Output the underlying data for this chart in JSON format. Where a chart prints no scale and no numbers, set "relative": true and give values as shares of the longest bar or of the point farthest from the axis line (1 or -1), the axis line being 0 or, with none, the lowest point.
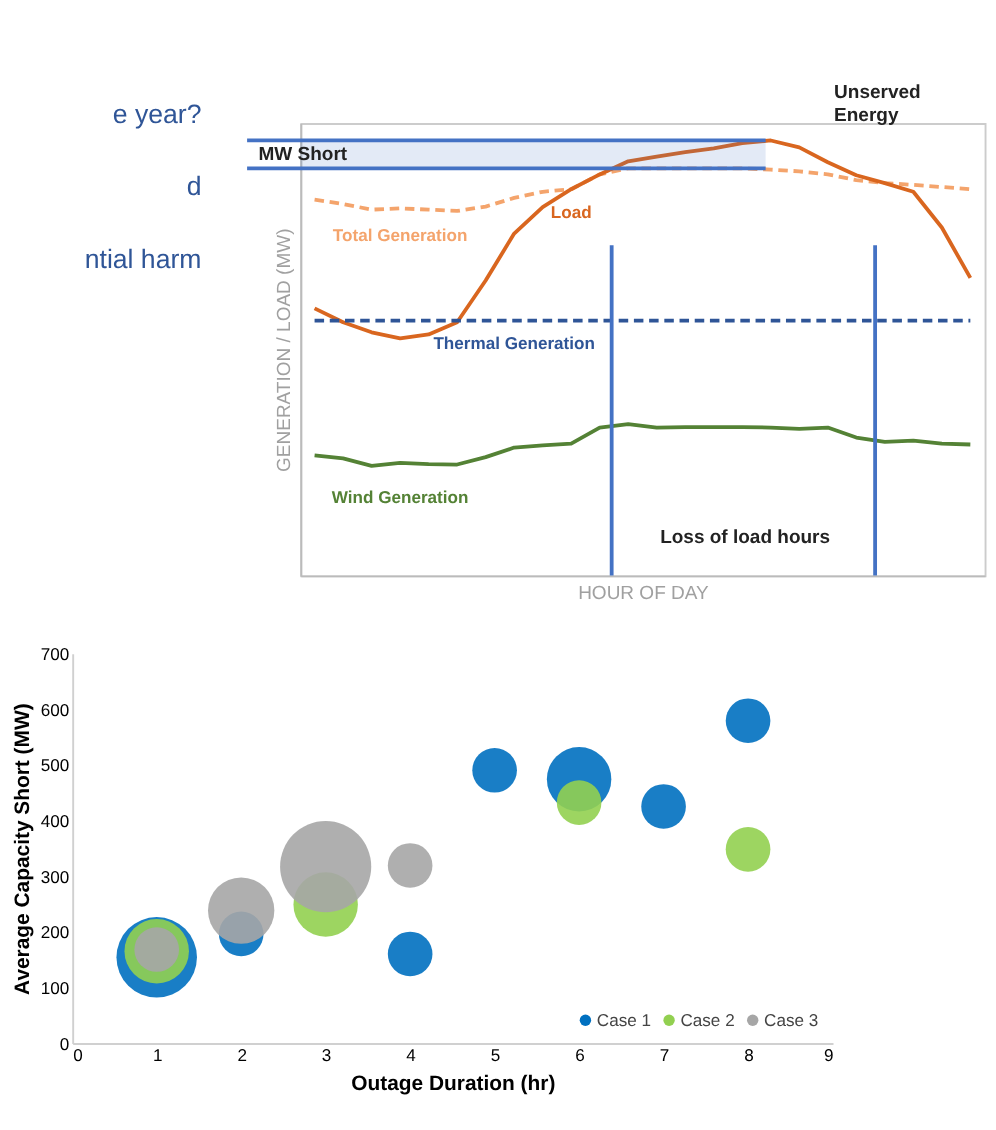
{
  "chart_data": [
    {
      "type": "line",
      "relative": true,
      "xlabel": "HOUR OF DAY",
      "ylabel": "GENERATION / LOAD (MW)",
      "legend": false,
      "grid": false,
      "tick_labels": false,
      "categories": [
        null,
        null,
        null,
        null,
        null,
        null,
        null,
        null,
        null,
        null,
        null,
        null,
        null,
        null,
        null,
        null,
        null,
        null,
        null,
        null,
        null,
        null,
        null,
        null
      ],
      "series": [
        {
          "name": "Total Generation",
          "color": "#f4a46c",
          "line_style": "dashed",
          "values": [
            0.864,
            0.854,
            0.841,
            0.844,
            0.841,
            0.838,
            0.848,
            0.868,
            0.882,
            0.888,
            0.922,
            0.936,
            0.936,
            0.936,
            0.936,
            0.936,
            0.933,
            0.929,
            0.922,
            0.909,
            0.902,
            0.898,
            0.893,
            0.888
          ]
        },
        {
          "name": "Load",
          "color": "#d9661f",
          "line_style": "solid",
          "values": [
            0.614,
            0.582,
            0.559,
            0.545,
            0.554,
            0.582,
            0.678,
            0.786,
            0.847,
            0.888,
            0.922,
            0.952,
            0.963,
            0.973,
            0.982,
            0.994,
            1.0,
            0.984,
            0.95,
            0.92,
            0.902,
            0.882,
            0.8,
            0.684
          ]
        },
        {
          "name": "Thermal Generation",
          "color": "#2f5597",
          "line_style": "dashed",
          "values": [
            0.586,
            0.586,
            0.586,
            0.586,
            0.586,
            0.586,
            0.586,
            0.586,
            0.586,
            0.586,
            0.586,
            0.586,
            0.586,
            0.586,
            0.586,
            0.586,
            0.586,
            0.586,
            0.586,
            0.586,
            0.586,
            0.586,
            0.586,
            0.586
          ]
        },
        {
          "name": "Wind Generation",
          "color": "#548235",
          "line_style": "solid",
          "values": [
            0.276,
            0.269,
            0.252,
            0.259,
            0.256,
            0.255,
            0.272,
            0.294,
            0.299,
            0.303,
            0.34,
            0.348,
            0.34,
            0.341,
            0.341,
            0.341,
            0.34,
            0.337,
            0.34,
            0.317,
            0.307,
            0.31,
            0.303,
            0.301
          ]
        }
      ],
      "bands": [
        {
          "axis": "y",
          "from": 0.936,
          "to": 1.0,
          "label": "MW Short",
          "color": "#4472c4"
        }
      ],
      "annotations": [
        "Unserved Energy",
        "Loss of load hours",
        "e year?",
        "d",
        "ntial harm"
      ]
    },
    {
      "type": "bubble",
      "xlabel": "Outage Duration (hr)",
      "ylabel": "Average Capacity Short (MW)",
      "legend": "bottom right",
      "grid": false,
      "xlim": [
        0,
        9
      ],
      "xticks": [
        0,
        1,
        2,
        3,
        4,
        5,
        6,
        7,
        8,
        9
      ],
      "ylim": [
        0,
        700
      ],
      "yticks": [
        0,
        100,
        200,
        300,
        400,
        500,
        600,
        700
      ],
      "series": [
        {
          "name": "Case 1",
          "color": "#0070c0",
          "x": [
            1,
            2,
            4,
            5,
            6,
            7,
            8
          ],
          "values": [
            154,
            196,
            160,
            490,
            474,
            425,
            579
          ],
          "sizes": [
            0.78,
            0.24,
            0.24,
            0.24,
            0.5,
            0.24,
            0.24
          ]
        },
        {
          "name": "Case 2",
          "color": "#92d050",
          "x": [
            1,
            3,
            6,
            8
          ],
          "values": [
            165,
            249,
            432,
            348
          ],
          "sizes": [
            0.5,
            0.5,
            0.24,
            0.24
          ]
        },
        {
          "name": "Case 3",
          "color": "#a6a6a6",
          "x": [
            1,
            2,
            3,
            4
          ],
          "values": [
            168,
            238,
            317,
            319
          ],
          "sizes": [
            0.24,
            0.53,
            1.0,
            0.24
          ]
        }
      ]
    }
  ]
}
